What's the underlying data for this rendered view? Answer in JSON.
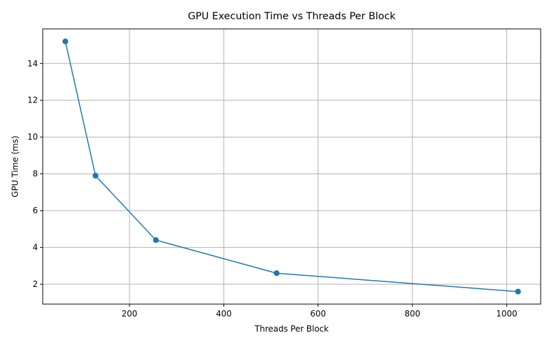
{
  "chart_data": {
    "type": "line",
    "title": "GPU Execution Time vs Threads Per Block",
    "xlabel": "Threads Per Block",
    "ylabel": "GPU Time (ms)",
    "x": [
      64,
      128,
      256,
      512,
      1024
    ],
    "series": [
      {
        "values": [
          15.2,
          7.9,
          4.4,
          2.6,
          1.6
        ]
      }
    ],
    "xlim": [
      16,
      1072
    ],
    "ylim": [
      0.92,
      15.88
    ],
    "xticks": [
      200,
      400,
      600,
      800,
      1000
    ],
    "yticks": [
      2,
      4,
      6,
      8,
      10,
      12,
      14
    ],
    "grid": true,
    "marker": "circle",
    "colors": {
      "series": "#1f77b4",
      "grid": "#b0b0b0",
      "axis": "#000000"
    }
  }
}
